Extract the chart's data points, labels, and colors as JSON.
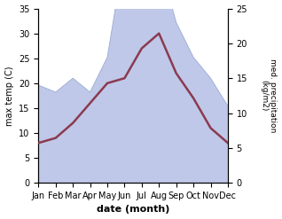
{
  "months": [
    "Jan",
    "Feb",
    "Mar",
    "Apr",
    "May",
    "Jun",
    "Jul",
    "Aug",
    "Sep",
    "Oct",
    "Nov",
    "Dec"
  ],
  "temperature": [
    8,
    9,
    12,
    16,
    20,
    21,
    27,
    30,
    22,
    17,
    11,
    8
  ],
  "precipitation": [
    14,
    13,
    15,
    13,
    18,
    33,
    26,
    32,
    23,
    18,
    15,
    11
  ],
  "temp_color": "#8B3A50",
  "precip_fill_color": "#BFC8E8",
  "precip_edge_color": "#9BAAD5",
  "xlabel": "date (month)",
  "ylabel_left": "max temp (C)",
  "ylabel_right": "med. precipitation\n(kg/m2)",
  "ylim_left": [
    0,
    35
  ],
  "ylim_right": [
    0,
    25
  ],
  "yticks_left": [
    0,
    5,
    10,
    15,
    20,
    25,
    30,
    35
  ],
  "yticks_right": [
    0,
    5,
    10,
    15,
    20,
    25
  ],
  "background_color": "#ffffff"
}
